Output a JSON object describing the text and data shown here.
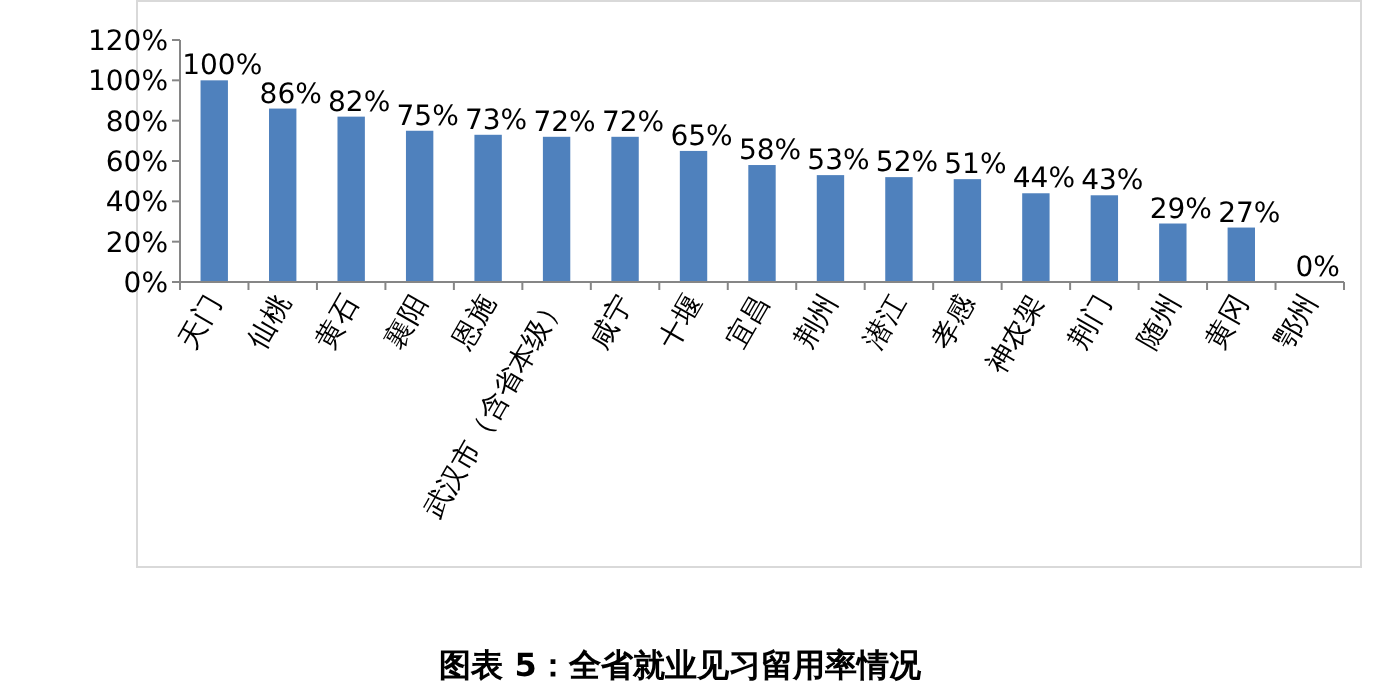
{
  "chart_data": {
    "type": "bar",
    "categories": [
      "天门",
      "仙桃",
      "黄石",
      "襄阳",
      "恩施",
      "武汉市（含省本级）",
      "咸宁",
      "十堰",
      "宜昌",
      "荆州",
      "潜江",
      "孝感",
      "神农架",
      "荆门",
      "随州",
      "黄冈",
      "鄂州"
    ],
    "values": [
      100,
      86,
      82,
      75,
      73,
      72,
      72,
      65,
      58,
      53,
      52,
      51,
      44,
      43,
      29,
      27,
      0
    ],
    "value_labels": [
      "100%",
      "86%",
      "82%",
      "75%",
      "73%",
      "72%",
      "72%",
      "65%",
      "58%",
      "53%",
      "52%",
      "51%",
      "44%",
      "43%",
      "29%",
      "27%",
      "0%"
    ],
    "color": "#4f81bd",
    "ylim": [
      0,
      120
    ],
    "yticks": [
      {
        "value": 0,
        "label": "0%"
      },
      {
        "value": 20,
        "label": "20%"
      },
      {
        "value": 40,
        "label": "40%"
      },
      {
        "value": 60,
        "label": "60%"
      },
      {
        "value": 80,
        "label": "80%"
      },
      {
        "value": 100,
        "label": "100%"
      },
      {
        "value": 120,
        "label": "120%"
      }
    ],
    "annotations": [
      "图表 5：全省就业见习留用率情况"
    ]
  }
}
